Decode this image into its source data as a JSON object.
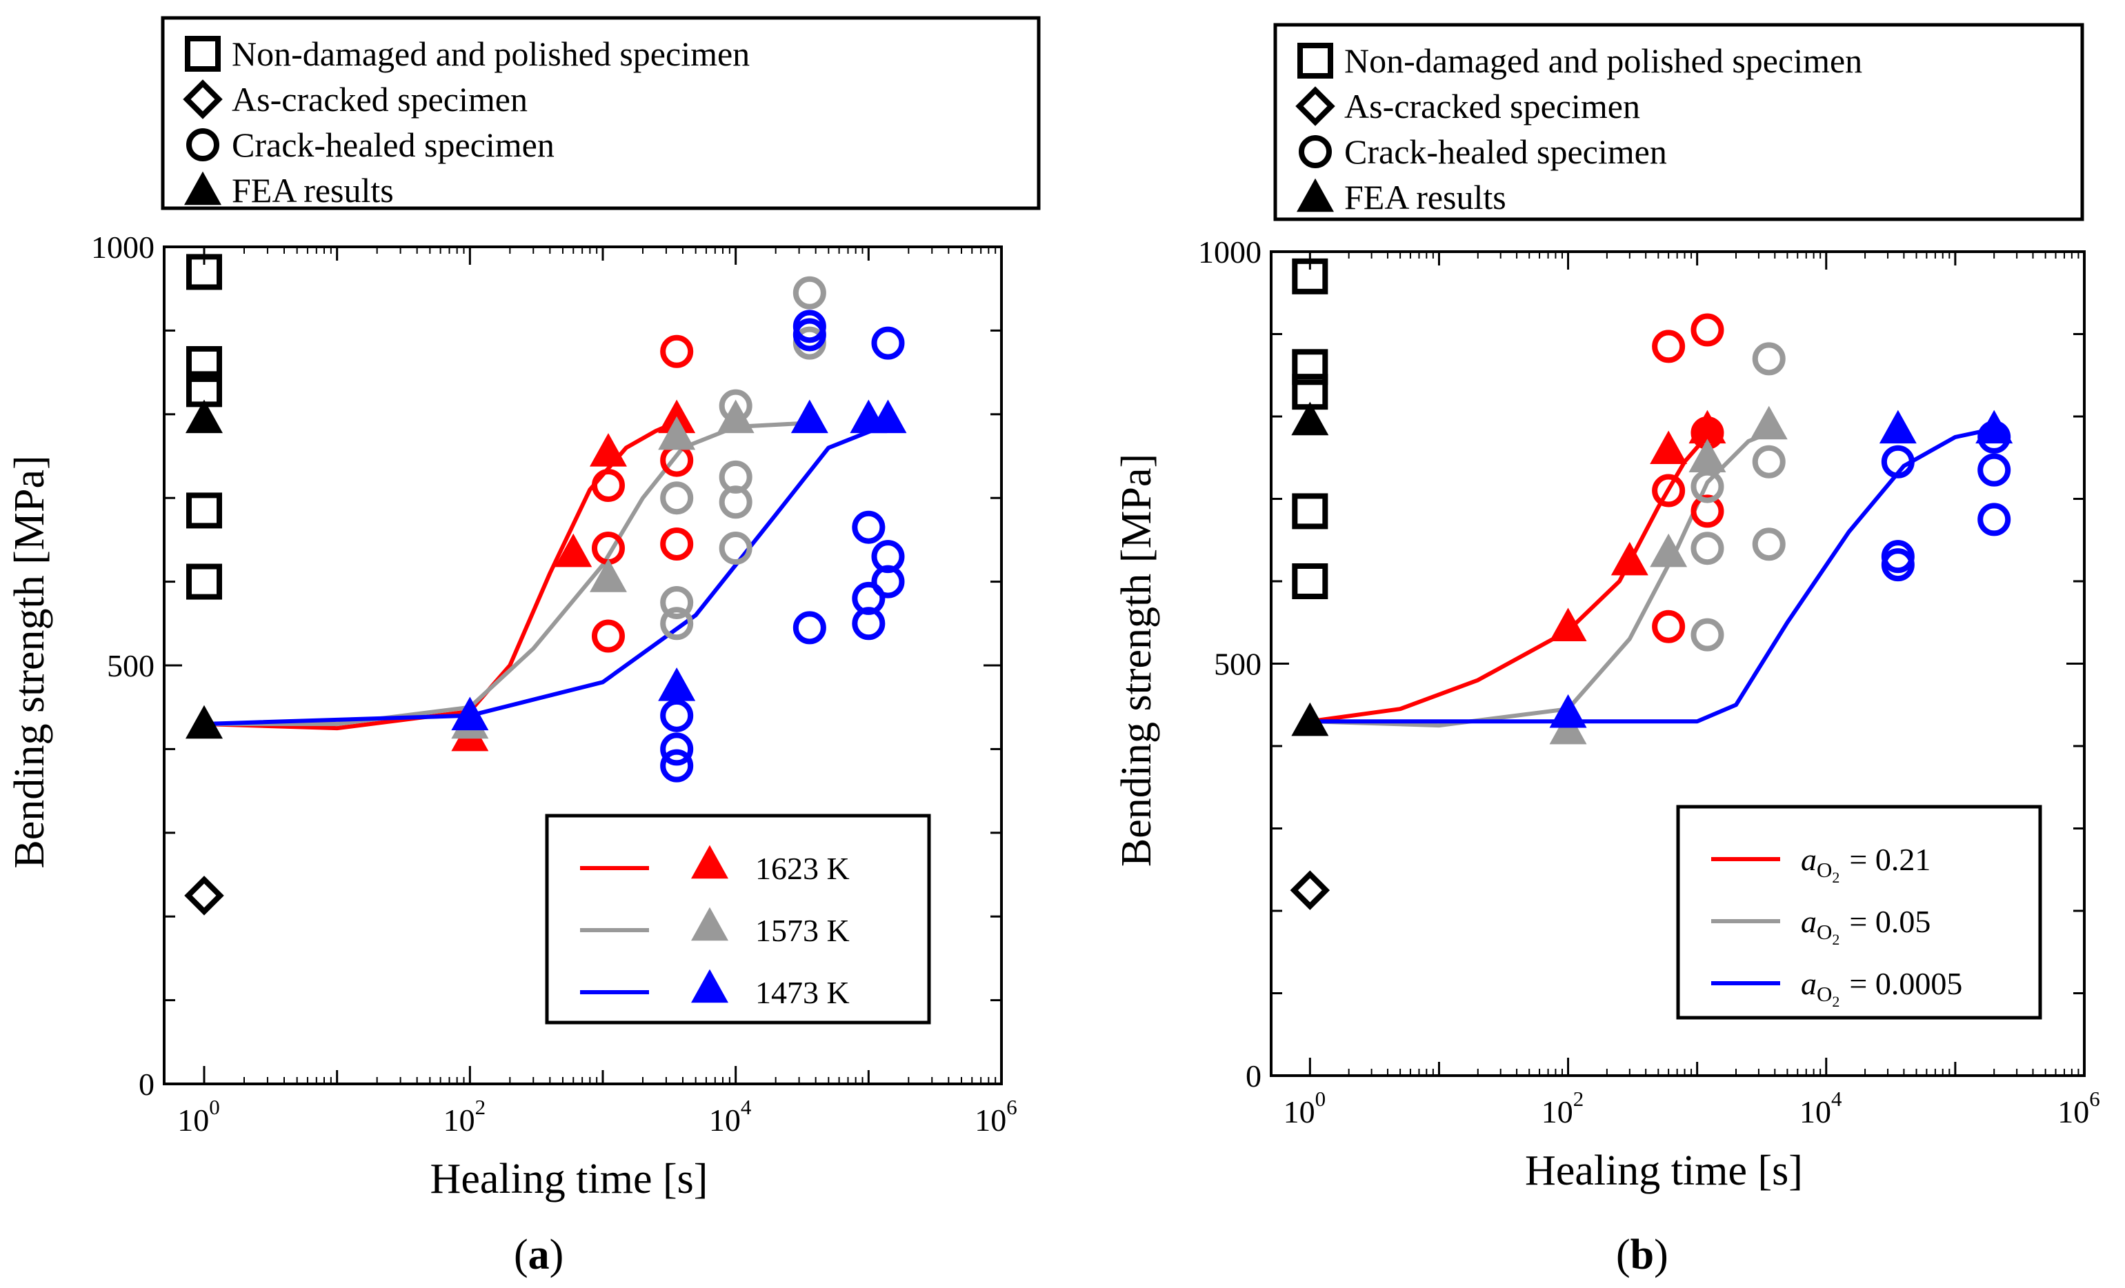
{
  "chart_data": [
    {
      "panel": "a",
      "type": "scatter",
      "caption_open": "(",
      "caption_label": "a",
      "caption_close": ")",
      "xlabel": "Healing time [s]",
      "ylabel": "Bending strength [MPa]",
      "x_scale": "log",
      "xlim": [
        0.5,
        1000000
      ],
      "ylim": [
        0,
        1000
      ],
      "yticks": [
        0,
        500,
        1000
      ],
      "xticks": [
        {
          "base": "10",
          "exp": "0",
          "value": 1
        },
        {
          "base": "10",
          "exp": "2",
          "value": 100
        },
        {
          "base": "10",
          "exp": "4",
          "value": 10000
        },
        {
          "base": "10",
          "exp": "6",
          "value": 1000000
        }
      ],
      "symbol_legend": [
        {
          "marker": "square",
          "label": "Non-damaged and polished specimen"
        },
        {
          "marker": "diamond",
          "label": "As-cracked specimen"
        },
        {
          "marker": "circle",
          "label": "Crack-healed specimen"
        },
        {
          "marker": "triangle",
          "label": "FEA results"
        }
      ],
      "series_legend_position": "bottom-right",
      "series_legend": [
        {
          "label": "1623 K",
          "color": "#ff0000"
        },
        {
          "label": "1573 K",
          "color": "#999999"
        },
        {
          "label": "1473 K",
          "color": "#0000ff"
        }
      ],
      "reference": {
        "color": "#000000",
        "non_damaged": [
          {
            "x": 1,
            "y": 970
          },
          {
            "x": 1,
            "y": 860
          },
          {
            "x": 1,
            "y": 830
          },
          {
            "x": 1,
            "y": 685
          },
          {
            "x": 1,
            "y": 600
          }
        ],
        "as_cracked": [
          {
            "x": 1,
            "y": 225
          }
        ],
        "fea": [
          {
            "x": 1,
            "y": 795
          },
          {
            "x": 1,
            "y": 430
          }
        ]
      },
      "series": [
        {
          "name": "1623 K",
          "color": "#ff0000",
          "curve": [
            {
              "x": 1,
              "y": 430
            },
            {
              "x": 10,
              "y": 425
            },
            {
              "x": 100,
              "y": 445
            },
            {
              "x": 200,
              "y": 500
            },
            {
              "x": 400,
              "y": 610
            },
            {
              "x": 800,
              "y": 710
            },
            {
              "x": 1500,
              "y": 760
            },
            {
              "x": 2500,
              "y": 780
            },
            {
              "x": 3500,
              "y": 790
            }
          ],
          "fea": [
            {
              "x": 100,
              "y": 415
            },
            {
              "x": 600,
              "y": 635
            },
            {
              "x": 1100,
              "y": 755
            },
            {
              "x": 3600,
              "y": 795
            }
          ],
          "healed": [
            {
              "x": 1100,
              "y": 715
            },
            {
              "x": 1100,
              "y": 640
            },
            {
              "x": 1100,
              "y": 535
            },
            {
              "x": 3600,
              "y": 875
            },
            {
              "x": 3600,
              "y": 745
            },
            {
              "x": 3600,
              "y": 645
            }
          ]
        },
        {
          "name": "1573 K",
          "color": "#999999",
          "curve": [
            {
              "x": 1,
              "y": 430
            },
            {
              "x": 10,
              "y": 430
            },
            {
              "x": 100,
              "y": 450
            },
            {
              "x": 300,
              "y": 520
            },
            {
              "x": 1000,
              "y": 620
            },
            {
              "x": 2000,
              "y": 700
            },
            {
              "x": 4000,
              "y": 760
            },
            {
              "x": 10000,
              "y": 785
            },
            {
              "x": 40000,
              "y": 790
            }
          ],
          "fea": [
            {
              "x": 100,
              "y": 430
            },
            {
              "x": 1100,
              "y": 605
            },
            {
              "x": 3600,
              "y": 775
            },
            {
              "x": 10000,
              "y": 795
            }
          ],
          "healed": [
            {
              "x": 3600,
              "y": 700
            },
            {
              "x": 3600,
              "y": 575
            },
            {
              "x": 3600,
              "y": 550
            },
            {
              "x": 10000,
              "y": 810
            },
            {
              "x": 10000,
              "y": 725
            },
            {
              "x": 10000,
              "y": 695
            },
            {
              "x": 10000,
              "y": 640
            },
            {
              "x": 36000,
              "y": 945
            },
            {
              "x": 36000,
              "y": 885
            }
          ]
        },
        {
          "name": "1473 K",
          "color": "#0000ff",
          "curve": [
            {
              "x": 1,
              "y": 430
            },
            {
              "x": 100,
              "y": 440
            },
            {
              "x": 1000,
              "y": 480
            },
            {
              "x": 5000,
              "y": 560
            },
            {
              "x": 20000,
              "y": 680
            },
            {
              "x": 50000,
              "y": 760
            },
            {
              "x": 150000,
              "y": 790
            }
          ],
          "fea": [
            {
              "x": 100,
              "y": 440
            },
            {
              "x": 3600,
              "y": 475
            },
            {
              "x": 36000,
              "y": 795
            },
            {
              "x": 100000,
              "y": 795
            },
            {
              "x": 140000,
              "y": 795
            }
          ],
          "healed": [
            {
              "x": 3600,
              "y": 440
            },
            {
              "x": 3600,
              "y": 400
            },
            {
              "x": 3600,
              "y": 380
            },
            {
              "x": 36000,
              "y": 905
            },
            {
              "x": 36000,
              "y": 895
            },
            {
              "x": 36000,
              "y": 545
            },
            {
              "x": 100000,
              "y": 665
            },
            {
              "x": 100000,
              "y": 580
            },
            {
              "x": 100000,
              "y": 550
            },
            {
              "x": 140000,
              "y": 885
            },
            {
              "x": 140000,
              "y": 630
            },
            {
              "x": 140000,
              "y": 600
            }
          ]
        }
      ]
    },
    {
      "panel": "b",
      "type": "scatter",
      "caption_open": "(",
      "caption_label": "b",
      "caption_close": ")",
      "xlabel": "Healing time [s]",
      "ylabel": "Bending strength [MPa]",
      "x_scale": "log",
      "xlim": [
        0.5,
        1000000
      ],
      "ylim": [
        0,
        1000
      ],
      "yticks": [
        0,
        500,
        1000
      ],
      "xticks": [
        {
          "base": "10",
          "exp": "0",
          "value": 1
        },
        {
          "base": "10",
          "exp": "2",
          "value": 100
        },
        {
          "base": "10",
          "exp": "4",
          "value": 10000
        },
        {
          "base": "10",
          "exp": "6",
          "value": 1000000
        }
      ],
      "symbol_legend": [
        {
          "marker": "square",
          "label": "Non-damaged and polished specimen"
        },
        {
          "marker": "diamond",
          "label": "As-cracked specimen"
        },
        {
          "marker": "circle",
          "label": "Crack-healed specimen"
        },
        {
          "marker": "triangle",
          "label": "FEA results"
        }
      ],
      "series_legend_position": "bottom-right",
      "series_legend": [
        {
          "var": "a",
          "sub": "O",
          "subsub": "2",
          "value": "= 0.21",
          "color": "#ff0000"
        },
        {
          "var": "a",
          "sub": "O",
          "subsub": "2",
          "value": "= 0.05",
          "color": "#999999"
        },
        {
          "var": "a",
          "sub": "O",
          "subsub": "2",
          "value": "= 0.0005",
          "color": "#0000ff"
        }
      ],
      "reference": {
        "color": "#000000",
        "non_damaged": [
          {
            "x": 1,
            "y": 970
          },
          {
            "x": 1,
            "y": 860
          },
          {
            "x": 1,
            "y": 830
          },
          {
            "x": 1,
            "y": 685
          },
          {
            "x": 1,
            "y": 600
          }
        ],
        "as_cracked": [
          {
            "x": 1,
            "y": 225
          }
        ],
        "fea": [
          {
            "x": 1,
            "y": 795
          },
          {
            "x": 1,
            "y": 430
          }
        ]
      },
      "series": [
        {
          "name": "aO2 = 0.21",
          "color": "#ff0000",
          "curve": [
            {
              "x": 1,
              "y": 430
            },
            {
              "x": 5,
              "y": 445
            },
            {
              "x": 20,
              "y": 480
            },
            {
              "x": 100,
              "y": 540
            },
            {
              "x": 250,
              "y": 600
            },
            {
              "x": 500,
              "y": 690
            },
            {
              "x": 800,
              "y": 745
            },
            {
              "x": 1100,
              "y": 770
            }
          ],
          "fea": [
            {
              "x": 100,
              "y": 545
            },
            {
              "x": 300,
              "y": 625
            },
            {
              "x": 600,
              "y": 760
            },
            {
              "x": 1200,
              "y": 785
            }
          ],
          "healed": [
            {
              "x": 600,
              "y": 885
            },
            {
              "x": 600,
              "y": 710
            },
            {
              "x": 600,
              "y": 545
            },
            {
              "x": 1200,
              "y": 905
            },
            {
              "x": 1200,
              "y": 780
            },
            {
              "x": 1200,
              "y": 685
            }
          ]
        },
        {
          "name": "aO2 = 0.05",
          "color": "#999999",
          "curve": [
            {
              "x": 1,
              "y": 430
            },
            {
              "x": 10,
              "y": 425
            },
            {
              "x": 100,
              "y": 445
            },
            {
              "x": 300,
              "y": 530
            },
            {
              "x": 700,
              "y": 640
            },
            {
              "x": 1200,
              "y": 720
            },
            {
              "x": 2500,
              "y": 770
            },
            {
              "x": 3600,
              "y": 780
            }
          ],
          "fea": [
            {
              "x": 100,
              "y": 420
            },
            {
              "x": 600,
              "y": 635
            },
            {
              "x": 1200,
              "y": 750
            },
            {
              "x": 3600,
              "y": 790
            }
          ],
          "healed": [
            {
              "x": 1200,
              "y": 715
            },
            {
              "x": 1200,
              "y": 640
            },
            {
              "x": 1200,
              "y": 535
            },
            {
              "x": 3600,
              "y": 870
            },
            {
              "x": 3600,
              "y": 745
            },
            {
              "x": 3600,
              "y": 645
            }
          ]
        },
        {
          "name": "aO2 = 0.0005",
          "color": "#0000ff",
          "curve": [
            {
              "x": 1,
              "y": 430
            },
            {
              "x": 1000,
              "y": 430
            },
            {
              "x": 2000,
              "y": 450
            },
            {
              "x": 5000,
              "y": 550
            },
            {
              "x": 15000,
              "y": 660
            },
            {
              "x": 40000,
              "y": 740
            },
            {
              "x": 100000,
              "y": 775
            },
            {
              "x": 200000,
              "y": 785
            }
          ],
          "fea": [
            {
              "x": 100,
              "y": 440
            },
            {
              "x": 36000,
              "y": 785
            },
            {
              "x": 200000,
              "y": 785
            }
          ],
          "healed": [
            {
              "x": 36000,
              "y": 745
            },
            {
              "x": 36000,
              "y": 630
            },
            {
              "x": 36000,
              "y": 620
            },
            {
              "x": 200000,
              "y": 775
            },
            {
              "x": 200000,
              "y": 735
            },
            {
              "x": 200000,
              "y": 675
            }
          ]
        }
      ]
    }
  ]
}
